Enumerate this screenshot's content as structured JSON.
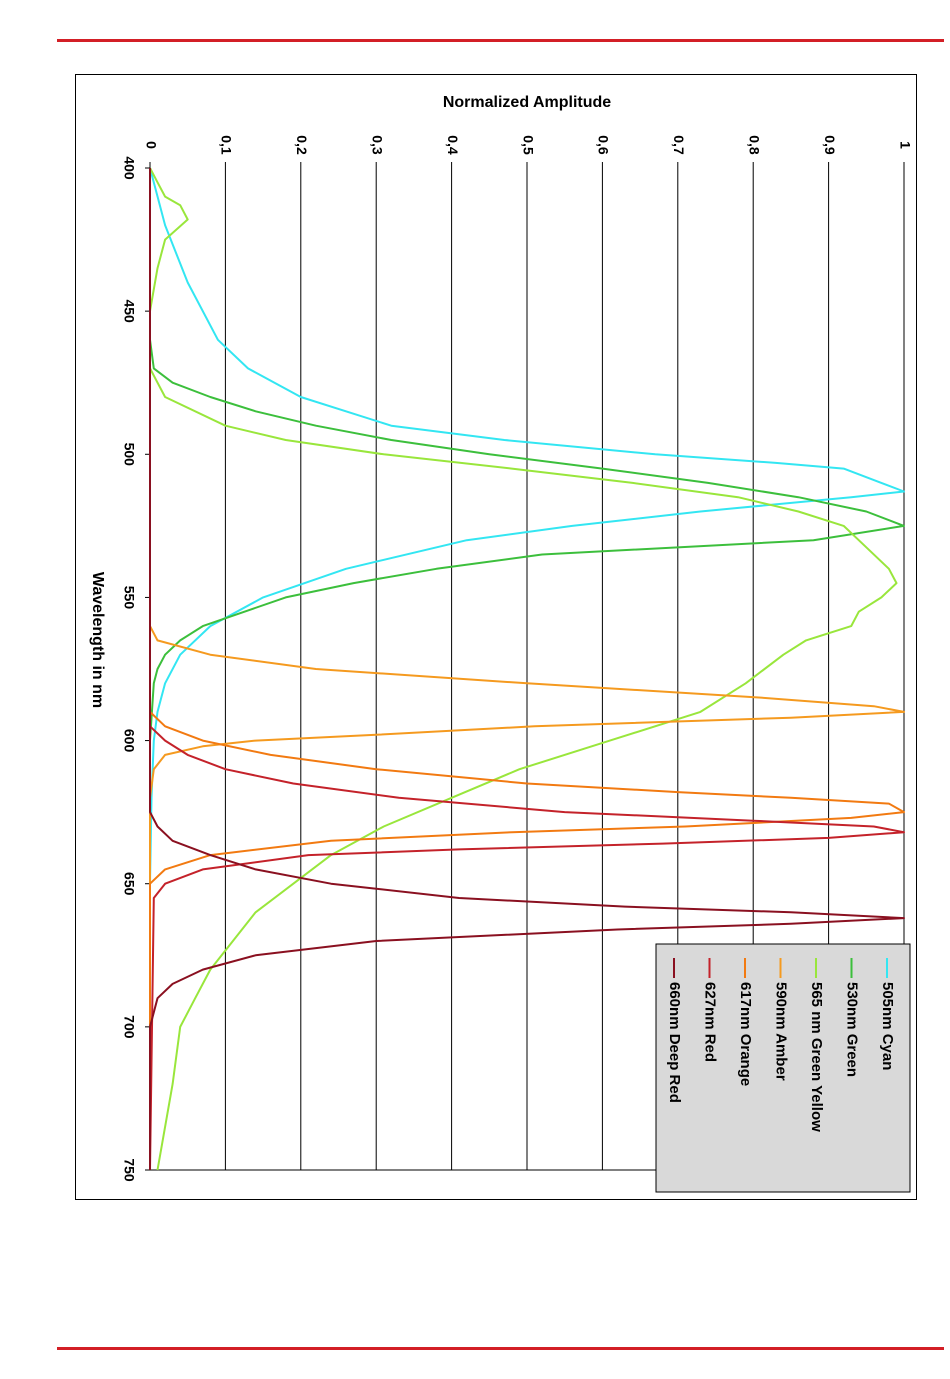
{
  "chart_data": {
    "type": "line",
    "orientation": "rotated-90",
    "xlabel": "Wavelength in nm",
    "ylabel": "Normalized Amplitude",
    "xlim": [
      400,
      750
    ],
    "ylim": [
      0,
      1
    ],
    "x_ticks": [
      "400",
      "450",
      "500",
      "550",
      "600",
      "650",
      "700",
      "750"
    ],
    "y_ticks": [
      "0",
      "0,1",
      "0,2",
      "0,3",
      "0,4",
      "0,5",
      "0,6",
      "0,7",
      "0,8",
      "0,9",
      "1"
    ],
    "grid": true,
    "legend_position": "bottom-right",
    "series": [
      {
        "name": "505nm Cyan",
        "color": "#33e6f2",
        "x": [
          400,
          420,
          440,
          460,
          470,
          480,
          490,
          495,
          500,
          503,
          505,
          507,
          510,
          513,
          515,
          520,
          525,
          530,
          540,
          550,
          560,
          570,
          580,
          590,
          600,
          620,
          650,
          700,
          750
        ],
        "y": [
          0,
          0.02,
          0.05,
          0.09,
          0.13,
          0.2,
          0.32,
          0.47,
          0.67,
          0.83,
          0.92,
          0.94,
          0.97,
          1.0,
          0.93,
          0.73,
          0.56,
          0.42,
          0.26,
          0.15,
          0.08,
          0.04,
          0.02,
          0.01,
          0.005,
          0.002,
          0,
          0,
          0
        ]
      },
      {
        "name": "530nm Green",
        "color": "#3cbf3c",
        "x": [
          400,
          460,
          470,
          475,
          480,
          485,
          490,
          495,
          500,
          505,
          510,
          515,
          520,
          525,
          530,
          535,
          540,
          545,
          550,
          560,
          565,
          570,
          575,
          580,
          600,
          650,
          750
        ],
        "y": [
          0,
          0,
          0.005,
          0.03,
          0.08,
          0.14,
          0.22,
          0.32,
          0.45,
          0.6,
          0.74,
          0.86,
          0.95,
          1.0,
          0.88,
          0.52,
          0.38,
          0.27,
          0.18,
          0.07,
          0.04,
          0.02,
          0.01,
          0.005,
          0,
          0,
          0
        ]
      },
      {
        "name": "565 nm Green Yellow",
        "color": "#99e63c",
        "x": [
          400,
          405,
          410,
          413,
          418,
          425,
          435,
          450,
          470,
          480,
          490,
          495,
          500,
          505,
          510,
          515,
          520,
          525,
          530,
          540,
          545,
          550,
          555,
          560,
          565,
          570,
          580,
          590,
          600,
          610,
          620,
          630,
          640,
          650,
          660,
          670,
          680,
          690,
          700,
          720,
          750
        ],
        "y": [
          0,
          0.01,
          0.02,
          0.04,
          0.05,
          0.02,
          0.01,
          0,
          0,
          0.02,
          0.1,
          0.18,
          0.31,
          0.48,
          0.64,
          0.78,
          0.86,
          0.92,
          0.94,
          0.98,
          0.99,
          0.97,
          0.94,
          0.93,
          0.87,
          0.84,
          0.79,
          0.73,
          0.61,
          0.49,
          0.4,
          0.31,
          0.24,
          0.19,
          0.14,
          0.11,
          0.08,
          0.06,
          0.04,
          0.03,
          0.01
        ]
      },
      {
        "name": "590nm Amber",
        "color": "#f59a1f",
        "x": [
          400,
          560,
          565,
          570,
          575,
          580,
          585,
          588,
          590,
          592,
          595,
          598,
          600,
          602,
          605,
          610,
          620,
          750
        ],
        "y": [
          0,
          0,
          0.01,
          0.08,
          0.22,
          0.5,
          0.81,
          0.96,
          1.0,
          0.85,
          0.51,
          0.3,
          0.14,
          0.07,
          0.02,
          0.005,
          0,
          0
        ]
      },
      {
        "name": "617nm Orange",
        "color": "#f27a11",
        "x": [
          400,
          590,
          595,
          600,
          605,
          610,
          615,
          618,
          620,
          622,
          625,
          627,
          630,
          632,
          635,
          640,
          645,
          650,
          750
        ],
        "y": [
          0,
          0,
          0.02,
          0.07,
          0.16,
          0.3,
          0.5,
          0.7,
          0.85,
          0.98,
          1.0,
          0.93,
          0.71,
          0.48,
          0.24,
          0.08,
          0.02,
          0,
          0
        ]
      },
      {
        "name": "627nm Red",
        "color": "#c4222a",
        "x": [
          400,
          595,
          600,
          605,
          610,
          615,
          620,
          625,
          628,
          630,
          632,
          634,
          636,
          638,
          640,
          645,
          650,
          655,
          750
        ],
        "y": [
          0,
          0,
          0.02,
          0.05,
          0.1,
          0.19,
          0.33,
          0.55,
          0.8,
          0.96,
          1.0,
          0.9,
          0.68,
          0.41,
          0.21,
          0.07,
          0.02,
          0.005,
          0
        ]
      },
      {
        "name": "660nm Deep Red",
        "color": "#8a1020",
        "x": [
          400,
          625,
          630,
          635,
          640,
          645,
          650,
          655,
          658,
          660,
          662,
          664,
          666,
          670,
          675,
          680,
          685,
          690,
          700,
          750
        ],
        "y": [
          0,
          0,
          0.01,
          0.03,
          0.08,
          0.14,
          0.24,
          0.41,
          0.63,
          0.85,
          1.0,
          0.85,
          0.62,
          0.3,
          0.14,
          0.07,
          0.03,
          0.01,
          0,
          0
        ]
      }
    ]
  }
}
